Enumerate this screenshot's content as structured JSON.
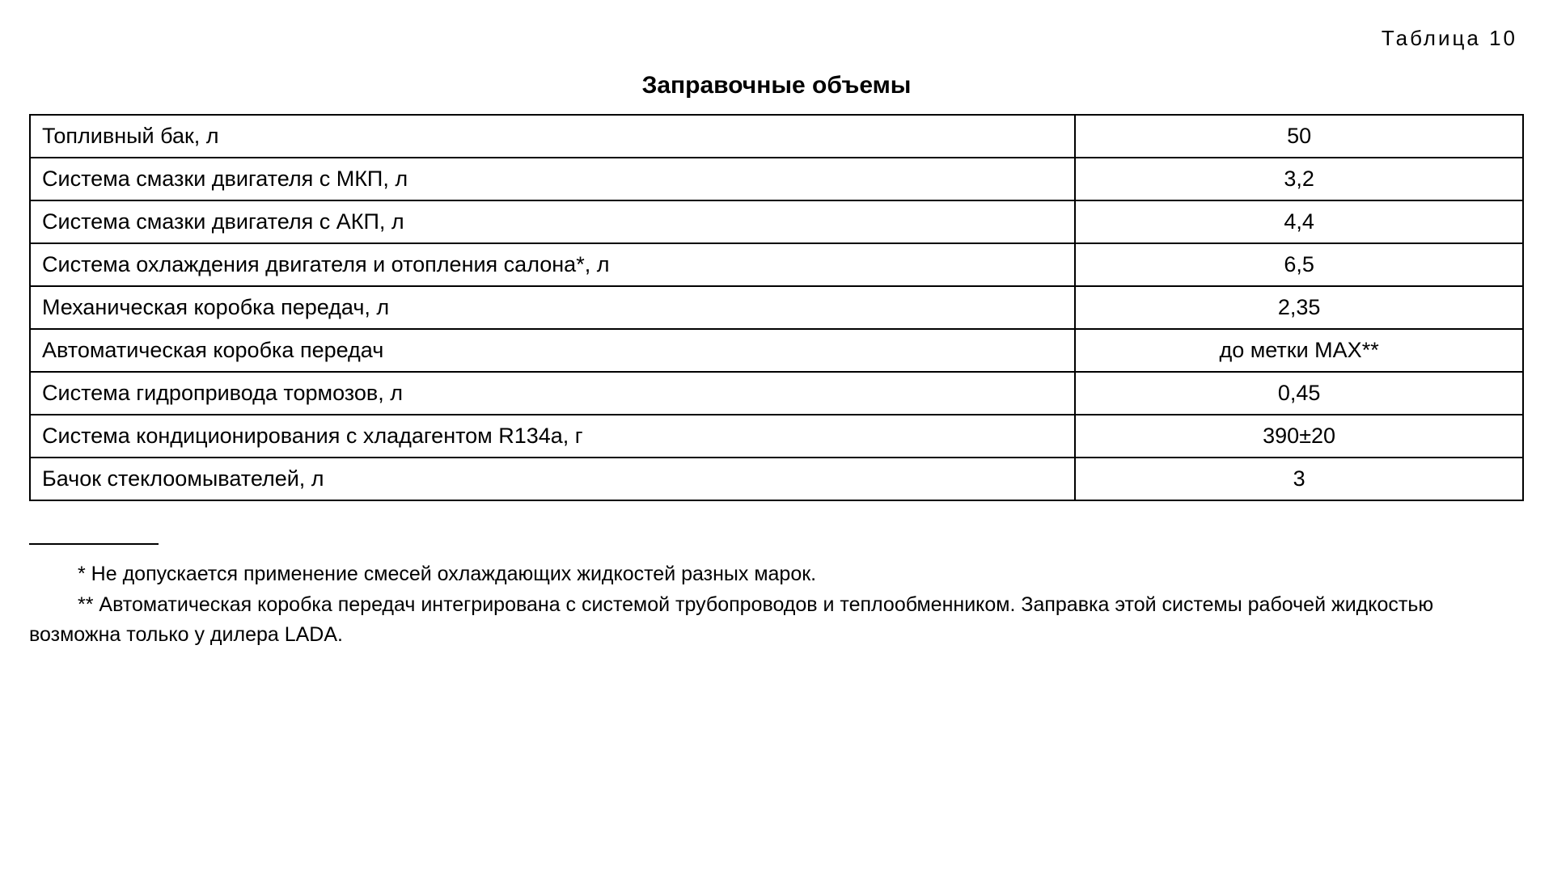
{
  "tableLabel": "Таблица 10",
  "title": "Заправочные объемы",
  "rows": [
    {
      "label": "Топливный бак, л",
      "value": "50"
    },
    {
      "label": "Система смазки двигателя с МКП, л",
      "value": "3,2"
    },
    {
      "label": "Система смазки двигателя с АКП, л",
      "value": "4,4"
    },
    {
      "label": "Система охлаждения двигателя и отопления салона*, л",
      "value": "6,5"
    },
    {
      "label": "Механическая коробка передач, л",
      "value": "2,35"
    },
    {
      "label": "Автоматическая коробка передач",
      "value": "до метки МАХ**"
    },
    {
      "label": "Система гидропривода тормозов, л",
      "value": "0,45"
    },
    {
      "label": "Система кондиционирования с хладагентом R134a, г",
      "value": "390±20"
    },
    {
      "label": "Бачок стеклоомывателей, л",
      "value": "3"
    }
  ],
  "footnotes": [
    "* Не допускается применение смесей охлаждающих жидкостей разных марок.",
    "** Автоматическая коробка передач интегрирована с системой трубопроводов и теплообменником. Заправка этой системы рабочей жидкостью возможна только у дилера LADA."
  ],
  "styling": {
    "type": "table",
    "background_color": "#ffffff",
    "text_color": "#000000",
    "border_color": "#000000",
    "border_width": 2,
    "body_fontsize": 27,
    "title_fontsize": 30,
    "tablelabel_fontsize": 26,
    "footnote_fontsize": 25,
    "label_column_width_pct": 70,
    "value_column_width_pct": 30,
    "value_align": "center",
    "label_align": "left"
  }
}
